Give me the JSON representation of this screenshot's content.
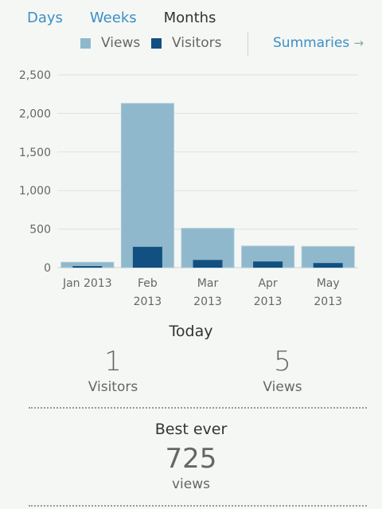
{
  "tabs": [
    {
      "label": "Days"
    },
    {
      "label": "Weeks"
    },
    {
      "label": "Months"
    }
  ],
  "legend": {
    "views_label": "Views",
    "visitors_label": "Visitors",
    "views_color": "#8fb8cc",
    "visitors_color": "#135082"
  },
  "summaries": {
    "label": "Summaries",
    "icon": "arrow-right-icon"
  },
  "chart_data": {
    "type": "bar",
    "categories": [
      "Jan 2013",
      "Feb 2013",
      "Mar 2013",
      "Apr 2013",
      "May 2013"
    ],
    "category_lines": [
      [
        "Jan 2013"
      ],
      [
        "Feb",
        "2013"
      ],
      [
        "Mar",
        "2013"
      ],
      [
        "Apr",
        "2013"
      ],
      [
        "May",
        "2013"
      ]
    ],
    "series": [
      {
        "name": "Views",
        "values": [
          70,
          2130,
          510,
          280,
          275
        ]
      },
      {
        "name": "Visitors",
        "values": [
          20,
          270,
          100,
          80,
          60
        ]
      }
    ],
    "ylim": [
      0,
      2500
    ],
    "yticks": [
      "0",
      "500",
      "1,000",
      "1,500",
      "2,000",
      "2,500"
    ],
    "ytick_values": [
      0,
      500,
      1000,
      1500,
      2000,
      2500
    ],
    "grid": true
  },
  "today": {
    "title": "Today",
    "visitors_value": "1",
    "visitors_label": "Visitors",
    "views_value": "5",
    "views_label": "Views"
  },
  "best": {
    "title": "Best ever",
    "value": "725",
    "label": "views"
  }
}
